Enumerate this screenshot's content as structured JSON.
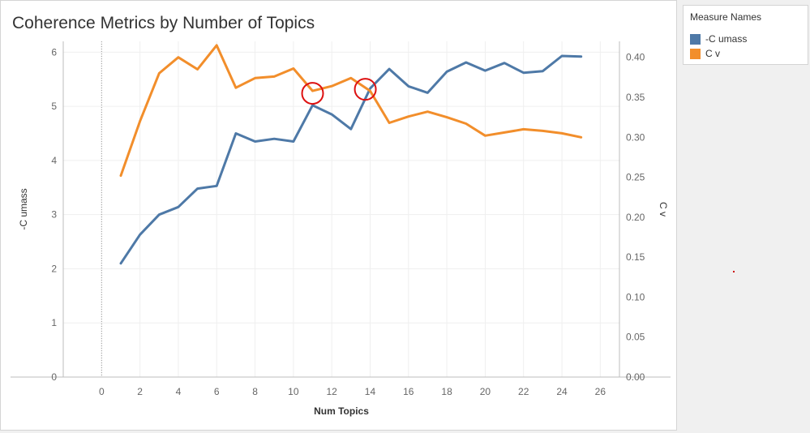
{
  "title": "Coherence Metrics by Number of Topics",
  "legend": {
    "title": "Measure Names",
    "items": [
      {
        "label": "-C umass",
        "color": "#4e79a7"
      },
      {
        "label": "C v",
        "color": "#f28e2b"
      }
    ]
  },
  "chart_data": {
    "type": "line",
    "title": "Coherence Metrics by Number of Topics",
    "xlabel": "Num Topics",
    "ylabel": "-C umass",
    "ylabel_right": "C v",
    "xlim": [
      -2,
      27
    ],
    "ylim": [
      0,
      6.2
    ],
    "ylim_right": [
      0,
      0.42
    ],
    "x_ticks": [
      0,
      2,
      4,
      6,
      8,
      10,
      12,
      14,
      16,
      18,
      20,
      22,
      24,
      26
    ],
    "y_ticks": [
      0,
      1,
      2,
      3,
      4,
      5,
      6
    ],
    "y_ticks_right": [
      "0.00",
      "0.05",
      "0.10",
      "0.15",
      "0.20",
      "0.25",
      "0.30",
      "0.35",
      "0.40"
    ],
    "grid": true,
    "legend_position": "right",
    "x": [
      1,
      2,
      3,
      4,
      5,
      6,
      7,
      8,
      9,
      10,
      11,
      12,
      13,
      14,
      15,
      16,
      17,
      18,
      19,
      20,
      21,
      22,
      23,
      24,
      25
    ],
    "series": [
      {
        "name": "-C umass",
        "axis": "left",
        "color": "#4e79a7",
        "values": [
          2.1,
          2.63,
          3.0,
          3.14,
          3.48,
          3.53,
          4.5,
          4.35,
          4.4,
          4.35,
          5.02,
          4.85,
          4.58,
          5.33,
          5.69,
          5.37,
          5.25,
          5.64,
          5.81,
          5.66,
          5.8,
          5.62,
          5.65,
          5.93,
          5.92
        ]
      },
      {
        "name": "C v",
        "axis": "right",
        "color": "#f28e2b",
        "values": [
          0.252,
          0.32,
          0.38,
          0.4,
          0.385,
          0.415,
          0.362,
          0.374,
          0.376,
          0.386,
          0.358,
          0.364,
          0.374,
          0.358,
          0.318,
          0.326,
          0.332,
          0.325,
          0.317,
          0.302,
          0.306,
          0.31,
          0.308,
          0.305,
          0.3
        ]
      }
    ],
    "annotations": [
      {
        "type": "circle",
        "x": 11.0,
        "y_right": 0.355,
        "color": "#dd1111"
      },
      {
        "type": "circle",
        "x": 13.75,
        "y_right": 0.36,
        "color": "#dd1111"
      }
    ]
  }
}
